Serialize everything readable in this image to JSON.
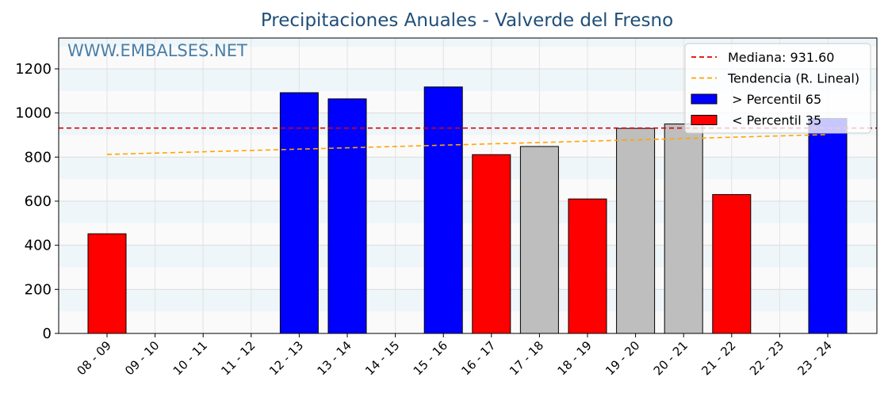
{
  "chart_data": {
    "type": "bar",
    "title": "Precipitaciones Anuales - Valverde del Fresno",
    "watermark": "WWW.EMBALSES.NET",
    "xlabel": "",
    "ylabel": "",
    "ylim": [
      0,
      1340
    ],
    "yticks": [
      0,
      200,
      400,
      600,
      800,
      1000,
      1200
    ],
    "grid": true,
    "legend_placement": "top-right",
    "categories": [
      "08 - 09",
      "09 - 10",
      "10 - 11",
      "11 - 12",
      "12 - 13",
      "13 - 14",
      "14 - 15",
      "15 - 16",
      "16 - 17",
      "17 - 18",
      "18 - 19",
      "19 - 20",
      "20 - 21",
      "21 - 22",
      "22 - 23",
      "23 - 24"
    ],
    "values": [
      452,
      null,
      null,
      null,
      1092,
      1064,
      null,
      1118,
      811,
      848,
      610,
      930,
      950,
      630,
      null,
      975
    ],
    "bar_classes": [
      "low",
      null,
      null,
      null,
      "high",
      "high",
      null,
      "high",
      "low",
      "mid",
      "low",
      "mid",
      "mid",
      "low",
      null,
      "high"
    ],
    "median": {
      "value": 931.6,
      "label": "Mediana: 931.60"
    },
    "trend": {
      "label": "Tendencia (R. Lineal)",
      "start": 812,
      "end": 902
    },
    "legend": [
      {
        "key": "median",
        "label": "Mediana: 931.60"
      },
      {
        "key": "trend",
        "label": "Tendencia (R. Lineal)"
      },
      {
        "key": "high",
        "label": " > Percentil 65"
      },
      {
        "key": "low",
        "label": " < Percentil 35"
      }
    ],
    "colors": {
      "high": "#0000ff",
      "low": "#ff0000",
      "mid": "#bebebe",
      "median": "#e00000",
      "trend": "#ffa500",
      "title": "#1f4e79",
      "watermark": "#4a7fa8",
      "band": "#eef6f9"
    }
  }
}
